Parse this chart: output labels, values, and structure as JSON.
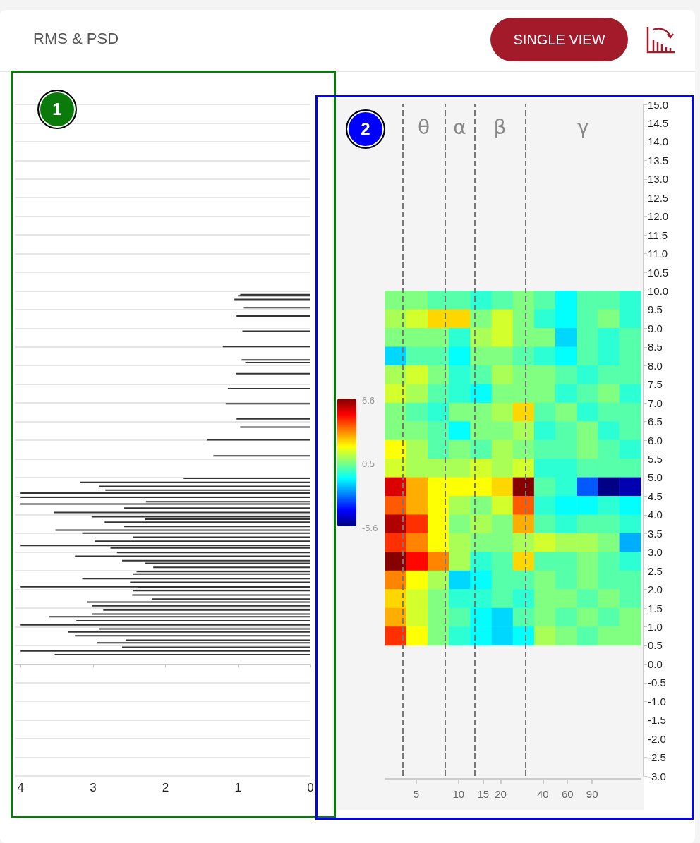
{
  "chart_data": [
    {
      "type": "bar",
      "title": "RMS & PSD",
      "annotations": [
        "1",
        "SINGLE VIEW"
      ],
      "orientation": "horizontal",
      "color": "#333333",
      "tick_labels": "x",
      "grid": "y",
      "x": [
        9.9,
        9.87,
        9.77,
        9.55,
        9.33,
        8.92,
        8.51,
        8.15,
        8.08,
        7.78,
        7.38,
        6.98,
        6.57,
        6.35,
        6.01,
        5.58,
        4.98,
        4.87,
        4.76,
        4.66,
        4.58,
        4.47,
        4.35,
        4.29,
        4.18,
        4.06,
        3.95,
        3.88,
        3.8,
        3.69,
        3.59,
        3.51,
        3.4,
        3.29,
        3.18,
        3.11,
        2.99,
        2.89,
        2.77,
        2.7,
        2.59,
        2.48,
        2.41,
        2.29,
        2.19,
        2.07,
        2.05,
        1.97,
        1.85,
        1.74,
        1.66,
        1.56,
        1.45,
        1.34,
        1.27,
        1.16,
        1.05,
        0.94,
        0.86,
        0.76,
        0.64,
        0.57,
        0.45,
        0.35,
        0.25
      ],
      "values": [
        0.97,
        1.0,
        1.05,
        0.92,
        1.02,
        0.94,
        1.21,
        0.95,
        0.9,
        1.03,
        1.14,
        1.17,
        1.02,
        0.97,
        1.43,
        1.34,
        1.75,
        3.18,
        2.92,
        2.83,
        4.0,
        4.0,
        2.27,
        4.0,
        2.57,
        3.54,
        3.02,
        2.28,
        2.84,
        2.57,
        3.52,
        3.15,
        2.45,
        2.97,
        4.0,
        2.76,
        2.67,
        3.25,
        2.6,
        2.28,
        2.17,
        2.4,
        2.45,
        3.15,
        2.49,
        4.0,
        2.38,
        2.45,
        2.46,
        2.19,
        3.08,
        3.01,
        2.86,
        3.01,
        3.61,
        3.23,
        4.0,
        2.92,
        3.35,
        3.25,
        2.55,
        2.95,
        2.6,
        4.0,
        3.53
      ],
      "xlim": [
        4.08,
        0
      ],
      "xticks": [
        4,
        3,
        2,
        1,
        0
      ],
      "ylim": [
        -3,
        15
      ],
      "yticks": [
        -3,
        -2.5,
        -2,
        -1.5,
        -1,
        -0.5,
        0,
        0.5,
        1,
        1.5,
        2,
        2.5,
        3,
        3.5,
        4,
        4.5,
        5,
        5.5,
        6,
        6.5,
        7,
        7.5,
        8,
        8.5,
        9,
        9.5,
        10,
        10.5,
        11,
        11.5,
        12,
        12.5,
        13,
        13.5,
        14,
        14.5,
        15
      ]
    },
    {
      "type": "scatter",
      "marker": "square",
      "annotations": [
        "2",
        "θ",
        "α",
        "β",
        "γ"
      ],
      "log": "x",
      "grid": false,
      "x": [
        3.57,
        5.07,
        7.19,
        10.2,
        14.5,
        20.6,
        29.2,
        41.4,
        58.7,
        83.4,
        118,
        168,
        3.57,
        5.07,
        7.19,
        10.2,
        14.5,
        20.6,
        29.2,
        41.4,
        58.7,
        83.4,
        118,
        168,
        3.57,
        5.07,
        7.19,
        10.2,
        14.5,
        20.6,
        29.2,
        41.4,
        58.7,
        83.4,
        118,
        168,
        3.57,
        5.07,
        7.19,
        10.2,
        14.5,
        20.6,
        29.2,
        41.4,
        58.7,
        83.4,
        118,
        168,
        3.57,
        5.07,
        7.19,
        10.2,
        14.5,
        20.6,
        29.2,
        41.4,
        58.7,
        83.4,
        118,
        168,
        3.57,
        5.07,
        7.19,
        10.2,
        14.5,
        20.6,
        29.2,
        41.4,
        58.7,
        83.4,
        118,
        168,
        3.57,
        5.07,
        7.19,
        10.2,
        14.5,
        20.6,
        29.2,
        41.4,
        58.7,
        83.4,
        118,
        168,
        3.57,
        5.07,
        7.19,
        10.2,
        14.5,
        20.6,
        29.2,
        41.4,
        58.7,
        83.4,
        118,
        168,
        3.57,
        5.07,
        7.19,
        10.2,
        14.5,
        20.6,
        29.2,
        41.4,
        58.7,
        83.4,
        118,
        168,
        3.57,
        5.07,
        7.19,
        10.2,
        14.5,
        20.6,
        29.2,
        41.4,
        58.7,
        83.4,
        118,
        168,
        3.57,
        5.07,
        7.19,
        10.2,
        14.5,
        20.6,
        29.2,
        41.4,
        58.7,
        83.4,
        118,
        168,
        3.57,
        5.07,
        7.19,
        10.2,
        14.5,
        20.6,
        29.2,
        41.4,
        58.7,
        83.4,
        118,
        168,
        3.57,
        5.07,
        7.19,
        10.2,
        14.5,
        20.6,
        29.2,
        41.4,
        58.7,
        83.4,
        118,
        168,
        3.57,
        5.07,
        7.19,
        10.2,
        14.5,
        20.6,
        29.2,
        41.4,
        58.7,
        83.4,
        118,
        168,
        3.57,
        5.07,
        7.19,
        10.2,
        14.5,
        20.6,
        29.2,
        41.4,
        58.7,
        83.4,
        118,
        168,
        3.57,
        5.07,
        7.19,
        10.2,
        14.5,
        20.6,
        29.2,
        41.4,
        58.7,
        83.4,
        118,
        168,
        3.57,
        5.07,
        7.19,
        10.2,
        14.5,
        20.6,
        29.2,
        41.4,
        58.7,
        83.4,
        118,
        168,
        3.57,
        5.07,
        7.19,
        10.2,
        14.5,
        20.6,
        29.2,
        41.4,
        58.7,
        83.4,
        118,
        168,
        3.57,
        5.07,
        7.19,
        10.2,
        14.5,
        20.6,
        29.2,
        41.4,
        58.7,
        83.4,
        118,
        168
      ],
      "values": [
        9.75,
        9.75,
        9.75,
        9.75,
        9.75,
        9.75,
        9.75,
        9.75,
        9.75,
        9.75,
        9.75,
        9.75,
        9.25,
        9.25,
        9.25,
        9.25,
        9.25,
        9.25,
        9.25,
        9.25,
        9.25,
        9.25,
        9.25,
        9.25,
        8.75,
        8.75,
        8.75,
        8.75,
        8.75,
        8.75,
        8.75,
        8.75,
        8.75,
        8.75,
        8.75,
        8.75,
        8.25,
        8.25,
        8.25,
        8.25,
        8.25,
        8.25,
        8.25,
        8.25,
        8.25,
        8.25,
        8.25,
        8.25,
        7.75,
        7.75,
        7.75,
        7.75,
        7.75,
        7.75,
        7.75,
        7.75,
        7.75,
        7.75,
        7.75,
        7.75,
        7.25,
        7.25,
        7.25,
        7.25,
        7.25,
        7.25,
        7.25,
        7.25,
        7.25,
        7.25,
        7.25,
        7.25,
        6.75,
        6.75,
        6.75,
        6.75,
        6.75,
        6.75,
        6.75,
        6.75,
        6.75,
        6.75,
        6.75,
        6.75,
        6.25,
        6.25,
        6.25,
        6.25,
        6.25,
        6.25,
        6.25,
        6.25,
        6.25,
        6.25,
        6.25,
        6.25,
        5.75,
        5.75,
        5.75,
        5.75,
        5.75,
        5.75,
        5.75,
        5.75,
        5.75,
        5.75,
        5.75,
        5.75,
        5.25,
        5.25,
        5.25,
        5.25,
        5.25,
        5.25,
        5.25,
        5.25,
        5.25,
        5.25,
        5.25,
        5.25,
        4.75,
        4.75,
        4.75,
        4.75,
        4.75,
        4.75,
        4.75,
        4.75,
        4.75,
        4.75,
        4.75,
        4.75,
        4.25,
        4.25,
        4.25,
        4.25,
        4.25,
        4.25,
        4.25,
        4.25,
        4.25,
        4.25,
        4.25,
        4.25,
        3.75,
        3.75,
        3.75,
        3.75,
        3.75,
        3.75,
        3.75,
        3.75,
        3.75,
        3.75,
        3.75,
        3.75,
        3.25,
        3.25,
        3.25,
        3.25,
        3.25,
        3.25,
        3.25,
        3.25,
        3.25,
        3.25,
        3.25,
        3.25,
        2.75,
        2.75,
        2.75,
        2.75,
        2.75,
        2.75,
        2.75,
        2.75,
        2.75,
        2.75,
        2.75,
        2.75,
        2.25,
        2.25,
        2.25,
        2.25,
        2.25,
        2.25,
        2.25,
        2.25,
        2.25,
        2.25,
        2.25,
        2.25,
        1.75,
        1.75,
        1.75,
        1.75,
        1.75,
        1.75,
        1.75,
        1.75,
        1.75,
        1.75,
        1.75,
        1.75,
        1.25,
        1.25,
        1.25,
        1.25,
        1.25,
        1.25,
        1.25,
        1.25,
        1.25,
        1.25,
        1.25,
        1.25,
        0.75,
        0.75,
        0.75,
        0.75,
        0.75,
        0.75,
        0.75,
        0.75,
        0.75,
        0.75,
        0.75,
        0.75
      ],
      "cvalues": [
        0.5,
        0.5,
        0,
        0,
        -0.5,
        0,
        0.5,
        0,
        -1,
        0,
        0,
        -0.5,
        1,
        1.5,
        2.5,
        2.5,
        0.5,
        1.5,
        0.5,
        -0.5,
        -1,
        0,
        0.5,
        -0.5,
        0.5,
        0.5,
        0.5,
        -0.5,
        1,
        1.5,
        0.5,
        0.5,
        -1.5,
        0,
        -0.5,
        0,
        -1.5,
        0,
        0,
        -1,
        0.5,
        0.5,
        0,
        -0.5,
        -1,
        0,
        -0.5,
        0,
        1,
        1.5,
        0.5,
        -0.5,
        0,
        1,
        0.5,
        0.5,
        0,
        -0.5,
        0,
        0,
        1.5,
        1,
        0,
        -0.5,
        -1,
        0.5,
        0.5,
        0.5,
        -0.5,
        0,
        0.5,
        -0.5,
        0.5,
        0,
        -0.5,
        0.5,
        0.5,
        1,
        2.5,
        0,
        0.5,
        -0.5,
        0,
        0,
        0.5,
        0.5,
        0,
        -1,
        0.5,
        0.5,
        1,
        -0.5,
        0,
        0.5,
        -0.5,
        0,
        2,
        1,
        0,
        0.5,
        0,
        1,
        0.5,
        0,
        0,
        0.5,
        0,
        -0.5,
        1.5,
        1,
        1,
        1,
        1.5,
        1,
        1.5,
        -0.5,
        -0.5,
        0,
        0,
        0,
        5.5,
        3,
        2,
        2,
        2,
        2.5,
        6.5,
        0,
        -0.5,
        -3,
        -5.5,
        -5,
        4,
        3,
        2,
        1,
        0.5,
        1.5,
        4,
        -0.5,
        -1,
        -1,
        -0.5,
        -1,
        6,
        4.5,
        2,
        0.5,
        1,
        0.5,
        3,
        0,
        -0.5,
        0,
        0,
        -0.5,
        4.5,
        3.5,
        2,
        1,
        0.5,
        0.5,
        1,
        1.5,
        1,
        1,
        0.5,
        -2,
        6.5,
        5,
        3.5,
        1,
        -0.5,
        0,
        2.5,
        0,
        0,
        0.5,
        0,
        -0.5,
        3.5,
        2,
        1,
        -1.5,
        -1,
        0,
        0,
        0.5,
        0,
        0.5,
        0,
        0,
        2.5,
        1.5,
        0.5,
        -0.5,
        -0.5,
        0,
        -0.5,
        0.5,
        0.5,
        0,
        0.5,
        0,
        3,
        1.5,
        0.5,
        0,
        -1,
        -1.5,
        0,
        0.5,
        0,
        0.5,
        0,
        0.5,
        4.5,
        2,
        0.5,
        -0.5,
        -1,
        -1.5,
        -1,
        1,
        0.5,
        0,
        0.5,
        0.5
      ],
      "clim": [
        -5.6,
        6.6
      ],
      "cticks": [
        -5.6,
        0.5,
        6.6
      ],
      "xlim": [
        3,
        200
      ],
      "xticks": [
        5,
        10,
        15,
        20,
        40,
        60,
        90
      ],
      "ylim": [
        -3,
        15
      ],
      "yticks": [
        {
          "value": -3,
          "label": "-3.0"
        },
        {
          "value": -2.5,
          "label": "-2.5"
        },
        {
          "value": -2,
          "label": "-2.0"
        },
        {
          "value": -1.5,
          "label": "-1.5"
        },
        {
          "value": -1,
          "label": "-1.0"
        },
        {
          "value": -0.5,
          "label": "-0.5"
        },
        {
          "value": 0,
          "label": "0.0"
        },
        {
          "value": 0.5,
          "label": "0.5"
        },
        {
          "value": 1,
          "label": "1.0"
        },
        {
          "value": 1.5,
          "label": "1.5"
        },
        {
          "value": 2,
          "label": "2.0"
        },
        {
          "value": 2.5,
          "label": "2.5"
        },
        {
          "value": 3,
          "label": "3.0"
        },
        {
          "value": 3.5,
          "label": "3.5"
        },
        {
          "value": 4,
          "label": "4.0"
        },
        {
          "value": 4.5,
          "label": "4.5"
        },
        {
          "value": 5,
          "label": "5.0"
        },
        {
          "value": 5.5,
          "label": "5.5"
        },
        {
          "value": 6,
          "label": "6.0"
        },
        {
          "value": 6.5,
          "label": "6.5"
        },
        {
          "value": 7,
          "label": "7.0"
        },
        {
          "value": 7.5,
          "label": "7.5"
        },
        {
          "value": 8,
          "label": "8.0"
        },
        {
          "value": 8.5,
          "label": "8.5"
        },
        {
          "value": 9,
          "label": "9.0"
        },
        {
          "value": 9.5,
          "label": "9.5"
        },
        {
          "value": 10,
          "label": "10.0"
        },
        {
          "value": 10.5,
          "label": "10.5"
        },
        {
          "value": 11,
          "label": "11.0"
        },
        {
          "value": 11.5,
          "label": "11.5"
        },
        {
          "value": 12,
          "label": "12.0"
        },
        {
          "value": 12.5,
          "label": "12.5"
        },
        {
          "value": 13,
          "label": "13.0"
        },
        {
          "value": 13.5,
          "label": "13.5"
        },
        {
          "value": 14,
          "label": "14.0"
        },
        {
          "value": 14.5,
          "label": "14.5"
        },
        {
          "value": 15,
          "label": "15.0"
        }
      ],
      "ref_lines": [
        {
          "axis": "x",
          "value": 4,
          "label": null,
          "color": "#777777",
          "line_style": "dashed"
        },
        {
          "axis": "x",
          "value": 8,
          "label": null,
          "color": "#777777",
          "line_style": "dashed"
        },
        {
          "axis": "x",
          "value": 13,
          "label": null,
          "color": "#777777",
          "line_style": "dashed"
        },
        {
          "axis": "x",
          "value": 30,
          "label": null,
          "color": "#777777",
          "line_style": "dashed"
        }
      ]
    }
  ]
}
